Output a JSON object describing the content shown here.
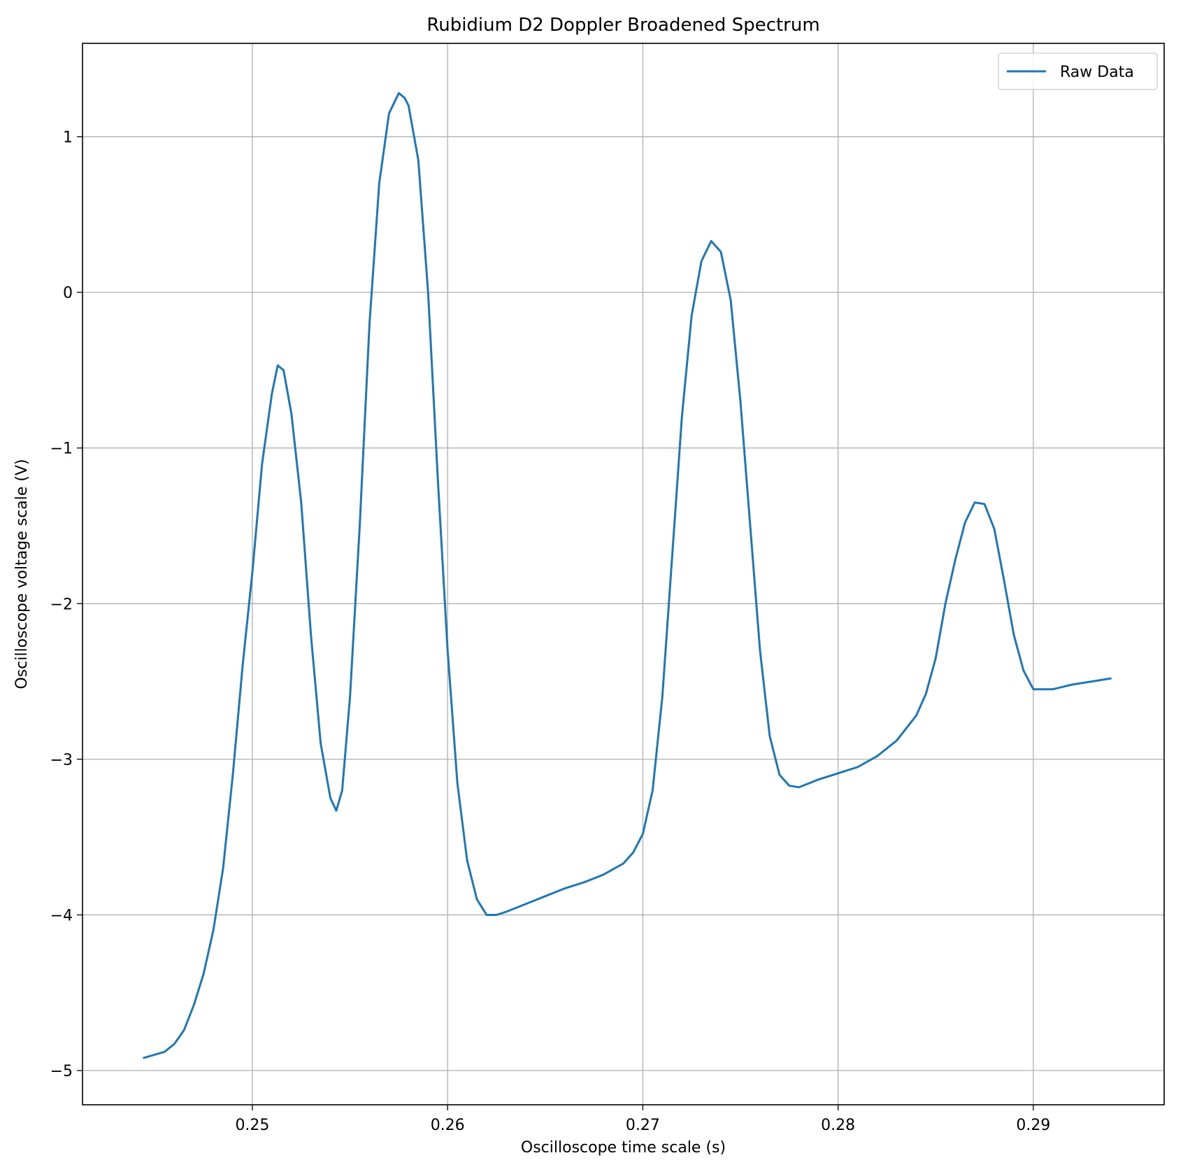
{
  "chart_data": {
    "type": "line",
    "title": "Rubidium D2 Doppler Broadened Spectrum",
    "xlabel": "Oscilloscope time scale (s)",
    "ylabel": "Oscilloscope voltage scale (V)",
    "xlim": [
      0.2413,
      0.2967
    ],
    "ylim": [
      -5.22,
      1.6
    ],
    "x_ticks": [
      0.25,
      0.26,
      0.27,
      0.28,
      0.29
    ],
    "x_tick_labels": [
      "0.25",
      "0.26",
      "0.27",
      "0.28",
      "0.29"
    ],
    "y_ticks": [
      1,
      0,
      -1,
      -2,
      -3,
      -4,
      -5
    ],
    "y_tick_labels": [
      "1",
      "0",
      "−1",
      "−2",
      "−3",
      "−4",
      "−5"
    ],
    "grid": true,
    "legend_position": "top-right",
    "series": [
      {
        "name": "Raw Data",
        "color": "#1f77b4",
        "x": [
          0.2444,
          0.2455,
          0.246,
          0.2465,
          0.247,
          0.2475,
          0.248,
          0.2485,
          0.249,
          0.2495,
          0.25,
          0.2505,
          0.251,
          0.2513,
          0.2516,
          0.252,
          0.2525,
          0.253,
          0.2535,
          0.254,
          0.2543,
          0.2546,
          0.255,
          0.2555,
          0.256,
          0.2565,
          0.257,
          0.2575,
          0.2578,
          0.258,
          0.2585,
          0.259,
          0.2595,
          0.26,
          0.2605,
          0.261,
          0.2615,
          0.262,
          0.2625,
          0.263,
          0.264,
          0.265,
          0.266,
          0.267,
          0.268,
          0.269,
          0.2695,
          0.27,
          0.2705,
          0.271,
          0.2715,
          0.272,
          0.2725,
          0.273,
          0.2735,
          0.274,
          0.2745,
          0.275,
          0.2755,
          0.276,
          0.2765,
          0.277,
          0.2775,
          0.278,
          0.279,
          0.28,
          0.281,
          0.282,
          0.283,
          0.284,
          0.2845,
          0.285,
          0.2855,
          0.286,
          0.2865,
          0.287,
          0.2875,
          0.288,
          0.2885,
          0.289,
          0.2895,
          0.29,
          0.291,
          0.292,
          0.293,
          0.294
        ],
        "values": [
          -4.92,
          -4.88,
          -4.83,
          -4.74,
          -4.58,
          -4.38,
          -4.1,
          -3.7,
          -3.1,
          -2.4,
          -1.8,
          -1.1,
          -0.65,
          -0.47,
          -0.5,
          -0.78,
          -1.35,
          -2.2,
          -2.9,
          -3.25,
          -3.33,
          -3.2,
          -2.6,
          -1.5,
          -0.2,
          0.7,
          1.15,
          1.28,
          1.25,
          1.2,
          0.85,
          0.0,
          -1.2,
          -2.3,
          -3.15,
          -3.65,
          -3.9,
          -4.0,
          -4.0,
          -3.98,
          -3.93,
          -3.88,
          -3.83,
          -3.79,
          -3.74,
          -3.67,
          -3.6,
          -3.48,
          -3.2,
          -2.6,
          -1.7,
          -0.8,
          -0.15,
          0.2,
          0.33,
          0.26,
          -0.05,
          -0.7,
          -1.5,
          -2.3,
          -2.85,
          -3.1,
          -3.17,
          -3.18,
          -3.13,
          -3.09,
          -3.05,
          -2.98,
          -2.88,
          -2.72,
          -2.58,
          -2.35,
          -2.0,
          -1.72,
          -1.48,
          -1.35,
          -1.36,
          -1.52,
          -1.85,
          -2.2,
          -2.43,
          -2.55,
          -2.55,
          -2.52,
          -2.5,
          -2.48
        ]
      }
    ]
  }
}
